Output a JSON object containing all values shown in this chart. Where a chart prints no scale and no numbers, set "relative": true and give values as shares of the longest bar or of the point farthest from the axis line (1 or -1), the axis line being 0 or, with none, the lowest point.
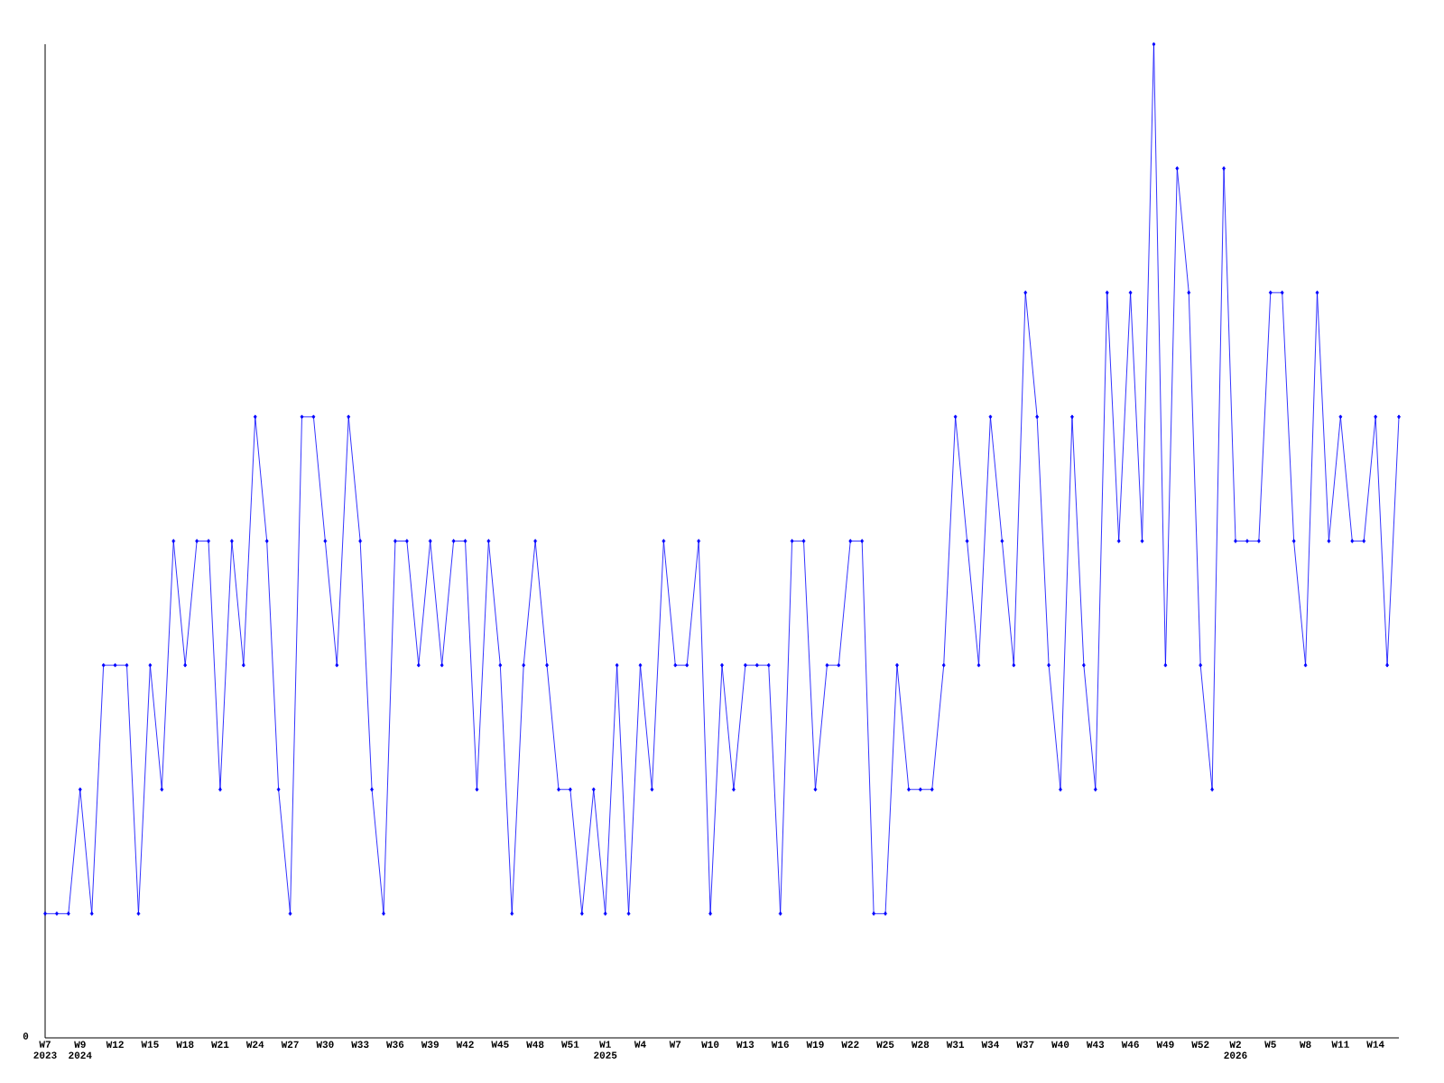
{
  "chart_data": {
    "type": "line",
    "relative": true,
    "color": "#0000ff",
    "marker": "diamond",
    "annotations": [
      "0"
    ],
    "categories": [
      "W7 2023",
      null,
      null,
      "W9 2024",
      null,
      null,
      "W12",
      null,
      null,
      "W15",
      null,
      null,
      "W18",
      null,
      null,
      "W21",
      null,
      null,
      "W24",
      null,
      null,
      "W27",
      null,
      null,
      "W30",
      null,
      null,
      "W33",
      null,
      null,
      "W36",
      null,
      null,
      "W39",
      null,
      null,
      "W42",
      null,
      null,
      "W45",
      null,
      null,
      "W48",
      null,
      null,
      "W51",
      null,
      null,
      "W1 2025",
      null,
      null,
      "W4",
      null,
      null,
      "W7",
      null,
      null,
      "W10",
      null,
      null,
      "W13",
      null,
      null,
      "W16",
      null,
      null,
      "W19",
      null,
      null,
      "W22",
      null,
      null,
      "W25",
      null,
      null,
      "W28",
      null,
      null,
      "W31",
      null,
      null,
      "W34",
      null,
      null,
      "W37",
      null,
      null,
      "W40",
      null,
      null,
      "W43",
      null,
      null,
      "W46",
      null,
      null,
      "W49",
      null,
      null,
      "W52",
      null,
      null,
      "W2 2026",
      null,
      null,
      "W5",
      null,
      null,
      "W8",
      null,
      null,
      "W11",
      null,
      null,
      "W14",
      null,
      null
    ],
    "values": [
      0.125,
      0.125,
      0.125,
      0.25,
      0.125,
      0.375,
      0.375,
      0.375,
      0.125,
      0.375,
      0.25,
      0.5,
      0.375,
      0.5,
      0.5,
      0.25,
      0.5,
      0.375,
      0.625,
      0.5,
      0.25,
      0.125,
      0.625,
      0.625,
      0.5,
      0.375,
      0.625,
      0.5,
      0.25,
      0.125,
      0.5,
      0.5,
      0.375,
      0.5,
      0.375,
      0.5,
      0.5,
      0.25,
      0.5,
      0.375,
      0.125,
      0.375,
      0.5,
      0.375,
      0.25,
      0.25,
      0.125,
      0.25,
      0.125,
      0.375,
      0.125,
      0.375,
      0.25,
      0.5,
      0.375,
      0.375,
      0.5,
      0.125,
      0.375,
      0.25,
      0.375,
      0.375,
      0.375,
      0.125,
      0.5,
      0.5,
      0.25,
      0.375,
      0.375,
      0.5,
      0.5,
      0.125,
      0.125,
      0.375,
      0.25,
      0.25,
      0.25,
      0.375,
      0.625,
      0.5,
      0.375,
      0.625,
      0.5,
      0.375,
      0.75,
      0.625,
      0.375,
      0.25,
      0.625,
      0.375,
      0.25,
      0.75,
      0.5,
      0.75,
      0.5,
      1,
      0.375,
      0.875,
      0.75,
      0.375,
      0.25,
      0.875,
      0.5,
      0.5,
      0.5,
      0.75,
      0.75,
      0.5,
      0.375,
      0.75,
      0.5,
      0.625,
      0.5,
      0.5,
      0.625,
      0.375,
      0.625
    ]
  }
}
